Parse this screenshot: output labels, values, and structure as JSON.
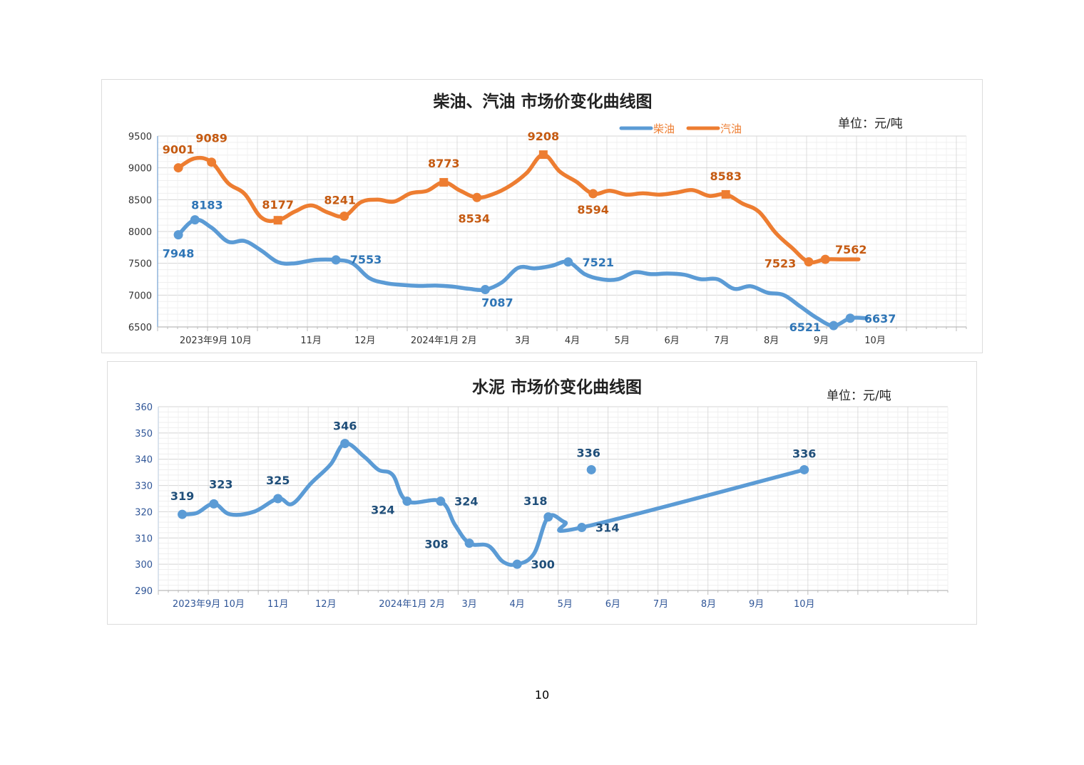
{
  "page_number": "10",
  "colors": {
    "diesel": "#5b9bd5",
    "gasoline": "#ed7d31",
    "cement": "#5b9bd5",
    "oil_tick": "#333333",
    "cement_tick": "#2f5597"
  },
  "chart_data": [
    {
      "type": "line",
      "title": "柴油、汽油  市场价变化曲线图",
      "unit": "单位：元/吨",
      "legend": {
        "placement": "top-right",
        "entries": [
          "柴油",
          "汽油"
        ]
      },
      "grid": true,
      "ylim": [
        6500,
        9500
      ],
      "yticks": [
        6500,
        7000,
        7500,
        8000,
        8500,
        9000,
        9500
      ],
      "x_range": [
        -0.5,
        19
      ],
      "x_tick_labels": [
        {
          "x": 0.9,
          "label": "2023年9月 10月"
        },
        {
          "x": 3.2,
          "label": "11月"
        },
        {
          "x": 4.5,
          "label": "12月"
        },
        {
          "x": 6.4,
          "label": "2024年1月 2月"
        },
        {
          "x": 8.3,
          "label": "3月"
        },
        {
          "x": 9.5,
          "label": "4月"
        },
        {
          "x": 10.7,
          "label": "5月"
        },
        {
          "x": 11.9,
          "label": "6月"
        },
        {
          "x": 13.1,
          "label": "7月"
        },
        {
          "x": 14.3,
          "label": "8月"
        },
        {
          "x": 15.5,
          "label": "9月"
        },
        {
          "x": 16.8,
          "label": "10月"
        }
      ],
      "series": [
        {
          "name": "柴油",
          "x": [
            0,
            0.4,
            0.8,
            1.2,
            1.6,
            2.0,
            2.4,
            2.8,
            3.3,
            3.8,
            4.2,
            4.6,
            5.0,
            5.4,
            5.8,
            6.2,
            6.6,
            7.0,
            7.4,
            7.8,
            8.2,
            8.6,
            9.0,
            9.4,
            9.8,
            10.2,
            10.6,
            11.0,
            11.4,
            11.8,
            12.2,
            12.6,
            13.0,
            13.4,
            13.8,
            14.2,
            14.6,
            15.0,
            15.4,
            15.8,
            16.2,
            16.6
          ],
          "values": [
            7948,
            8183,
            8060,
            7840,
            7850,
            7700,
            7520,
            7500,
            7553,
            7553,
            7500,
            7270,
            7190,
            7160,
            7145,
            7150,
            7135,
            7100,
            7087,
            7200,
            7430,
            7420,
            7460,
            7521,
            7330,
            7250,
            7250,
            7360,
            7330,
            7340,
            7320,
            7250,
            7250,
            7100,
            7140,
            7040,
            7000,
            6820,
            6640,
            6521,
            6637,
            6637
          ],
          "point_labels": [
            {
              "x": 0,
              "value": 7948,
              "label": "7948"
            },
            {
              "x": 0.4,
              "value": 8183,
              "label": "8183"
            },
            {
              "x": 3.8,
              "value": 7553,
              "label": "7553"
            },
            {
              "x": 7.4,
              "value": 7087,
              "label": "7087"
            },
            {
              "x": 9.4,
              "value": 7521,
              "label": "7521"
            },
            {
              "x": 15.8,
              "value": 6521,
              "label": "6521"
            },
            {
              "x": 16.2,
              "value": 6637,
              "label": "6637"
            }
          ]
        },
        {
          "name": "汽油",
          "x": [
            0,
            0.4,
            0.8,
            1.2,
            1.6,
            2.0,
            2.4,
            2.8,
            3.2,
            3.6,
            4.0,
            4.4,
            4.8,
            5.2,
            5.6,
            6.0,
            6.4,
            6.8,
            7.2,
            7.6,
            8.0,
            8.4,
            8.8,
            9.2,
            9.6,
            10.0,
            10.4,
            10.8,
            11.2,
            11.6,
            12.0,
            12.4,
            12.8,
            13.2,
            13.6,
            14.0,
            14.4,
            14.8,
            15.2,
            15.6,
            16.0,
            16.4
          ],
          "values": [
            9001,
            9150,
            9089,
            8760,
            8590,
            8220,
            8177,
            8310,
            8410,
            8300,
            8241,
            8460,
            8500,
            8470,
            8600,
            8640,
            8773,
            8640,
            8534,
            8590,
            8720,
            8920,
            9208,
            8940,
            8780,
            8594,
            8640,
            8580,
            8600,
            8580,
            8610,
            8650,
            8560,
            8583,
            8440,
            8310,
            7980,
            7740,
            7523,
            7562,
            7562,
            7562
          ],
          "point_labels": [
            {
              "x": 0,
              "value": 9001,
              "label": "9001"
            },
            {
              "x": 0.8,
              "value": 9089,
              "label": "9089"
            },
            {
              "x": 2.4,
              "value": 8177,
              "label": "8177"
            },
            {
              "x": 4.0,
              "value": 8241,
              "label": "8241"
            },
            {
              "x": 6.4,
              "value": 8773,
              "label": "8773"
            },
            {
              "x": 7.2,
              "value": 8534,
              "label": "8534"
            },
            {
              "x": 8.8,
              "value": 9208,
              "label": "9208"
            },
            {
              "x": 10.0,
              "value": 8594,
              "label": "8594"
            },
            {
              "x": 13.2,
              "value": 8583,
              "label": "8583"
            },
            {
              "x": 15.2,
              "value": 7523,
              "label": "7523"
            },
            {
              "x": 15.6,
              "value": 7562,
              "label": "7562"
            }
          ]
        }
      ]
    },
    {
      "type": "line",
      "title": "水泥  市场价变化曲线图",
      "unit": "单位：元/吨",
      "grid": true,
      "ylim": [
        290,
        360
      ],
      "yticks": [
        290,
        300,
        310,
        320,
        330,
        340,
        350,
        360
      ],
      "x_range": [
        -0.5,
        16
      ],
      "x_tick_labels": [
        {
          "x": 0.55,
          "label": "2023年9月 10月"
        },
        {
          "x": 2.0,
          "label": "11月"
        },
        {
          "x": 3.0,
          "label": "12月"
        },
        {
          "x": 4.8,
          "label": "2024年1月 2月"
        },
        {
          "x": 6.0,
          "label": "3月"
        },
        {
          "x": 7.0,
          "label": "4月"
        },
        {
          "x": 8.0,
          "label": "5月"
        },
        {
          "x": 9.0,
          "label": "6月"
        },
        {
          "x": 10.0,
          "label": "7月"
        },
        {
          "x": 11.0,
          "label": "8月"
        },
        {
          "x": 12.0,
          "label": "9月"
        },
        {
          "x": 13.0,
          "label": "10月"
        }
      ],
      "series": [
        {
          "x": [
            0,
            0.3,
            0.66,
            1.0,
            1.5,
            2.0,
            2.3,
            2.7,
            3.1,
            3.4,
            3.8,
            4.1,
            4.4,
            4.7,
            5.4,
            5.7,
            6.0,
            6.4,
            6.7,
            7.0,
            7.35,
            7.65,
            8.0,
            8.35,
            13.0
          ],
          "values": [
            319,
            319.5,
            323,
            319,
            320,
            325,
            323,
            331,
            338,
            346,
            341,
            336,
            334,
            324,
            324,
            315,
            308,
            307,
            301,
            300,
            304,
            318,
            316,
            314,
            336
          ],
          "point_labels": [
            {
              "x": 0,
              "value": 319,
              "label": "319"
            },
            {
              "x": 0.66,
              "value": 323,
              "label": "323"
            },
            {
              "x": 2.0,
              "value": 325,
              "label": "325"
            },
            {
              "x": 3.4,
              "value": 346,
              "label": "346"
            },
            {
              "x": 4.7,
              "value": 324,
              "label": "324"
            },
            {
              "x": 5.4,
              "value": 324,
              "label": "324"
            },
            {
              "x": 6.0,
              "value": 308,
              "label": "308"
            },
            {
              "x": 7.0,
              "value": 300,
              "label": "300"
            },
            {
              "x": 7.65,
              "value": 318,
              "label": "318"
            },
            {
              "x": 8.35,
              "value": 314,
              "label": "314"
            },
            {
              "x": 8.55,
              "value": 336,
              "label": "336"
            },
            {
              "x": 13.0,
              "value": 336,
              "label": "336"
            }
          ]
        }
      ]
    }
  ]
}
